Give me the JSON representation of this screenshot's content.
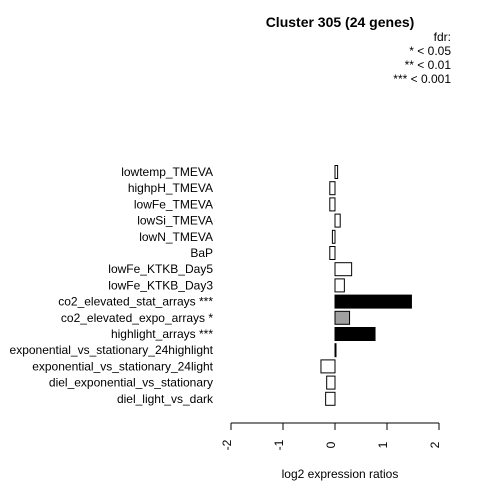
{
  "chart_data": {
    "type": "bar",
    "orientation": "horizontal",
    "title": "Cluster 305 (24 genes)",
    "xlabel": "log2 expression ratios",
    "ylabel": "",
    "xlim": [
      -2,
      2
    ],
    "xticks": [
      "-2",
      "-1",
      "0",
      "1",
      "2"
    ],
    "legend_title": "fdr:",
    "legend_lines": [
      "* < 0.05",
      "** < 0.01",
      "*** < 0.001"
    ],
    "categories": [
      "lowtemp_TMEVA",
      "highpH_TMEVA",
      "lowFe_TMEVA",
      "lowSi_TMEVA",
      "lowN_TMEVA",
      "BaP",
      "lowFe_KTKB_Day5",
      "lowFe_KTKB_Day3",
      "co2_elevated_stat_arrays ***",
      "co2_elevated_expo_arrays *",
      "highlight_arrays ***",
      "exponential_vs_stationary_24highlight",
      "exponential_vs_stationary_24light",
      "diel_exponential_vs_stationary",
      "diel_light_vs_dark"
    ],
    "values": [
      0.05,
      -0.1,
      -0.1,
      0.1,
      -0.05,
      -0.1,
      0.32,
      0.18,
      1.47,
      0.28,
      0.77,
      0.01,
      -0.27,
      -0.16,
      -0.18
    ],
    "fill_colors": [
      "#ffffff",
      "#ffffff",
      "#ffffff",
      "#ffffff",
      "#ffffff",
      "#ffffff",
      "#ffffff",
      "#ffffff",
      "#000000",
      "#a0a0a0",
      "#000000",
      "#ffffff",
      "#ffffff",
      "#ffffff",
      "#ffffff"
    ],
    "grid": false
  }
}
